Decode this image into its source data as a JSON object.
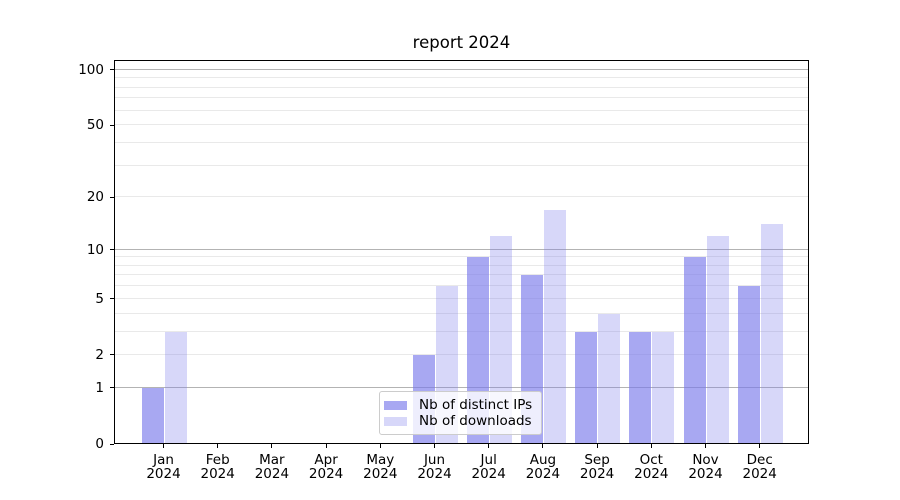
{
  "chart_data": {
    "type": "bar",
    "title": "report 2024",
    "categories": [
      "Jan",
      "Feb",
      "Mar",
      "Apr",
      "May",
      "Jun",
      "Jul",
      "Aug",
      "Sep",
      "Oct",
      "Nov",
      "Dec"
    ],
    "x_tick_year": "2024",
    "series": [
      {
        "name": "Nb of distinct IPs",
        "color": "#7979eb",
        "alpha": 0.65,
        "values": [
          1,
          0,
          0,
          0,
          0,
          2,
          9,
          7,
          3,
          3,
          9,
          6
        ]
      },
      {
        "name": "Nb of downloads",
        "color": "#7979eb",
        "alpha": 0.3,
        "values": [
          3,
          0,
          0,
          0,
          0,
          6,
          12,
          17,
          4,
          3,
          12,
          14
        ]
      }
    ],
    "y_axis": {
      "scale": "log1p",
      "ticks": [
        0,
        1,
        2,
        5,
        10,
        20,
        50,
        100
      ],
      "ylim": [
        0,
        113
      ]
    },
    "grid": {
      "major": [
        1,
        10,
        100
      ],
      "minor": [
        2,
        3,
        4,
        5,
        6,
        7,
        8,
        9,
        20,
        30,
        40,
        50,
        60,
        70,
        80,
        90
      ],
      "major_color": "#b3b3b3",
      "minor_color": "#e9e9e9"
    },
    "legend": {
      "position": "bottom-center"
    }
  }
}
